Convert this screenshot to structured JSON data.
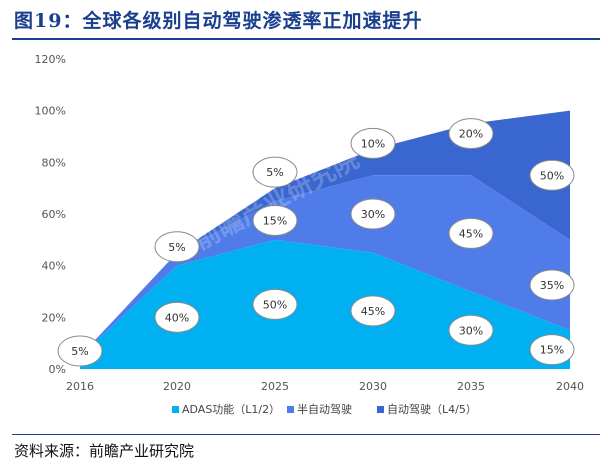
{
  "figure": {
    "title": "图19：全球各级别自动驾驶渗透率正加速提升",
    "source": "资料来源：前瞻产业研究院",
    "watermark": "前瞻产业研究院"
  },
  "chart_data": {
    "type": "area",
    "stacked": true,
    "x": [
      "2016",
      "2020",
      "2025",
      "2030",
      "2035",
      "2040"
    ],
    "yticks": [
      "0%",
      "20%",
      "40%",
      "60%",
      "80%",
      "100%",
      "120%"
    ],
    "ylim": [
      0,
      120
    ],
    "grid": false,
    "legend_position": "bottom",
    "series": [
      {
        "name": "ADAS功能（L1/2）",
        "values": [
          5,
          40,
          50,
          45,
          30,
          15
        ],
        "labels": [
          "5%",
          "40%",
          "50%",
          "45%",
          "30%",
          "15%"
        ],
        "color": "#00b0f0"
      },
      {
        "name": "半自动驾驶",
        "values": [
          0,
          5,
          15,
          30,
          45,
          35
        ],
        "labels": [
          "",
          "5%",
          "15%",
          "30%",
          "45%",
          "35%"
        ],
        "color": "#4f7ce8"
      },
      {
        "name": "自动驾驶（L4/5）",
        "values": [
          0,
          0,
          5,
          10,
          20,
          50
        ],
        "labels": [
          "",
          "",
          "5%",
          "10%",
          "20%",
          "50%"
        ],
        "color": "#3a66d0"
      }
    ]
  }
}
